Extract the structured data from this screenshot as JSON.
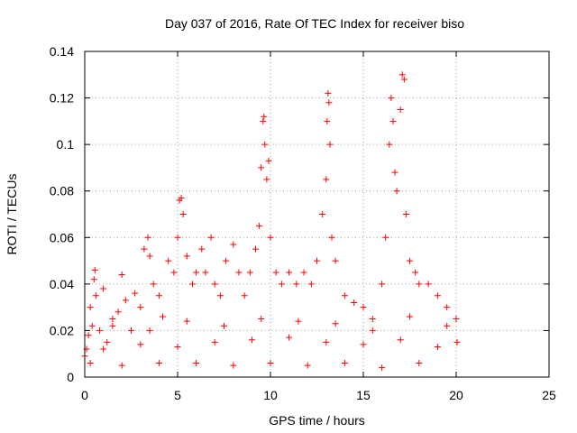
{
  "chart_data": {
    "type": "scatter",
    "title": "Day 037 of 2016, Rate Of TEC Index for receiver biso",
    "xlabel": "GPS time / hours",
    "ylabel": "ROTI / TECUs",
    "xlim": [
      0,
      25
    ],
    "ylim": [
      0,
      0.14
    ],
    "xticks": [
      "0",
      "5",
      "10",
      "15",
      "20",
      "25"
    ],
    "yticks": [
      "0",
      "0.02",
      "0.04",
      "0.06",
      "0.08",
      "0.1",
      "0.12",
      "0.14"
    ],
    "grid": true,
    "marker": "+",
    "color": "#ff0000",
    "series": [
      {
        "points": [
          [
            0.0,
            0.009
          ],
          [
            0.1,
            0.012
          ],
          [
            0.2,
            0.018
          ],
          [
            0.3,
            0.03
          ],
          [
            0.4,
            0.022
          ],
          [
            0.5,
            0.042
          ],
          [
            0.55,
            0.046
          ],
          [
            0.6,
            0.035
          ],
          [
            0.8,
            0.02
          ],
          [
            1.0,
            0.038
          ],
          [
            1.2,
            0.015
          ],
          [
            1.5,
            0.025
          ],
          [
            1.8,
            0.028
          ],
          [
            2.0,
            0.044
          ],
          [
            2.2,
            0.033
          ],
          [
            2.5,
            0.02
          ],
          [
            2.7,
            0.036
          ],
          [
            3.0,
            0.03
          ],
          [
            3.2,
            0.055
          ],
          [
            3.4,
            0.06
          ],
          [
            3.5,
            0.052
          ],
          [
            3.7,
            0.04
          ],
          [
            4.0,
            0.035
          ],
          [
            4.2,
            0.026
          ],
          [
            4.5,
            0.05
          ],
          [
            4.8,
            0.045
          ],
          [
            5.0,
            0.06
          ],
          [
            5.1,
            0.076
          ],
          [
            5.2,
            0.077
          ],
          [
            5.3,
            0.07
          ],
          [
            5.5,
            0.052
          ],
          [
            5.8,
            0.04
          ],
          [
            6.0,
            0.045
          ],
          [
            6.3,
            0.055
          ],
          [
            6.5,
            0.045
          ],
          [
            6.8,
            0.06
          ],
          [
            7.0,
            0.04
          ],
          [
            7.3,
            0.035
          ],
          [
            7.6,
            0.05
          ],
          [
            8.0,
            0.057
          ],
          [
            8.3,
            0.045
          ],
          [
            8.6,
            0.035
          ],
          [
            8.9,
            0.045
          ],
          [
            9.2,
            0.055
          ],
          [
            9.4,
            0.065
          ],
          [
            9.5,
            0.09
          ],
          [
            9.6,
            0.11
          ],
          [
            9.65,
            0.112
          ],
          [
            9.7,
            0.1
          ],
          [
            9.8,
            0.085
          ],
          [
            9.9,
            0.093
          ],
          [
            10.0,
            0.06
          ],
          [
            10.3,
            0.045
          ],
          [
            10.6,
            0.04
          ],
          [
            11.0,
            0.045
          ],
          [
            11.4,
            0.04
          ],
          [
            11.8,
            0.045
          ],
          [
            12.2,
            0.04
          ],
          [
            12.5,
            0.05
          ],
          [
            12.8,
            0.07
          ],
          [
            13.0,
            0.085
          ],
          [
            13.05,
            0.11
          ],
          [
            13.1,
            0.122
          ],
          [
            13.15,
            0.118
          ],
          [
            13.2,
            0.1
          ],
          [
            13.3,
            0.06
          ],
          [
            13.5,
            0.05
          ],
          [
            14.0,
            0.035
          ],
          [
            14.5,
            0.032
          ],
          [
            15.0,
            0.03
          ],
          [
            15.5,
            0.025
          ],
          [
            16.0,
            0.04
          ],
          [
            16.2,
            0.06
          ],
          [
            16.4,
            0.1
          ],
          [
            16.5,
            0.12
          ],
          [
            16.6,
            0.11
          ],
          [
            16.7,
            0.088
          ],
          [
            16.8,
            0.08
          ],
          [
            17.0,
            0.115
          ],
          [
            17.1,
            0.13
          ],
          [
            17.2,
            0.128
          ],
          [
            17.3,
            0.07
          ],
          [
            17.5,
            0.05
          ],
          [
            17.8,
            0.045
          ],
          [
            18.0,
            0.04
          ],
          [
            18.5,
            0.04
          ],
          [
            19.0,
            0.035
          ],
          [
            19.5,
            0.03
          ],
          [
            20.0,
            0.025
          ],
          [
            20.05,
            0.015
          ],
          [
            0.3,
            0.006
          ],
          [
            2.0,
            0.005
          ],
          [
            4.0,
            0.006
          ],
          [
            6.0,
            0.006
          ],
          [
            8.0,
            0.005
          ],
          [
            10.0,
            0.006
          ],
          [
            12.0,
            0.005
          ],
          [
            14.0,
            0.006
          ],
          [
            16.0,
            0.004
          ],
          [
            18.0,
            0.006
          ],
          [
            1.0,
            0.012
          ],
          [
            3.0,
            0.014
          ],
          [
            5.0,
            0.013
          ],
          [
            7.0,
            0.015
          ],
          [
            9.0,
            0.016
          ],
          [
            11.0,
            0.017
          ],
          [
            13.0,
            0.015
          ],
          [
            15.0,
            0.014
          ],
          [
            17.0,
            0.016
          ],
          [
            19.0,
            0.013
          ],
          [
            1.5,
            0.022
          ],
          [
            3.5,
            0.02
          ],
          [
            5.5,
            0.024
          ],
          [
            7.5,
            0.022
          ],
          [
            9.5,
            0.025
          ],
          [
            11.5,
            0.024
          ],
          [
            13.5,
            0.023
          ],
          [
            15.5,
            0.02
          ],
          [
            17.5,
            0.026
          ],
          [
            19.5,
            0.022
          ]
        ]
      }
    ]
  }
}
